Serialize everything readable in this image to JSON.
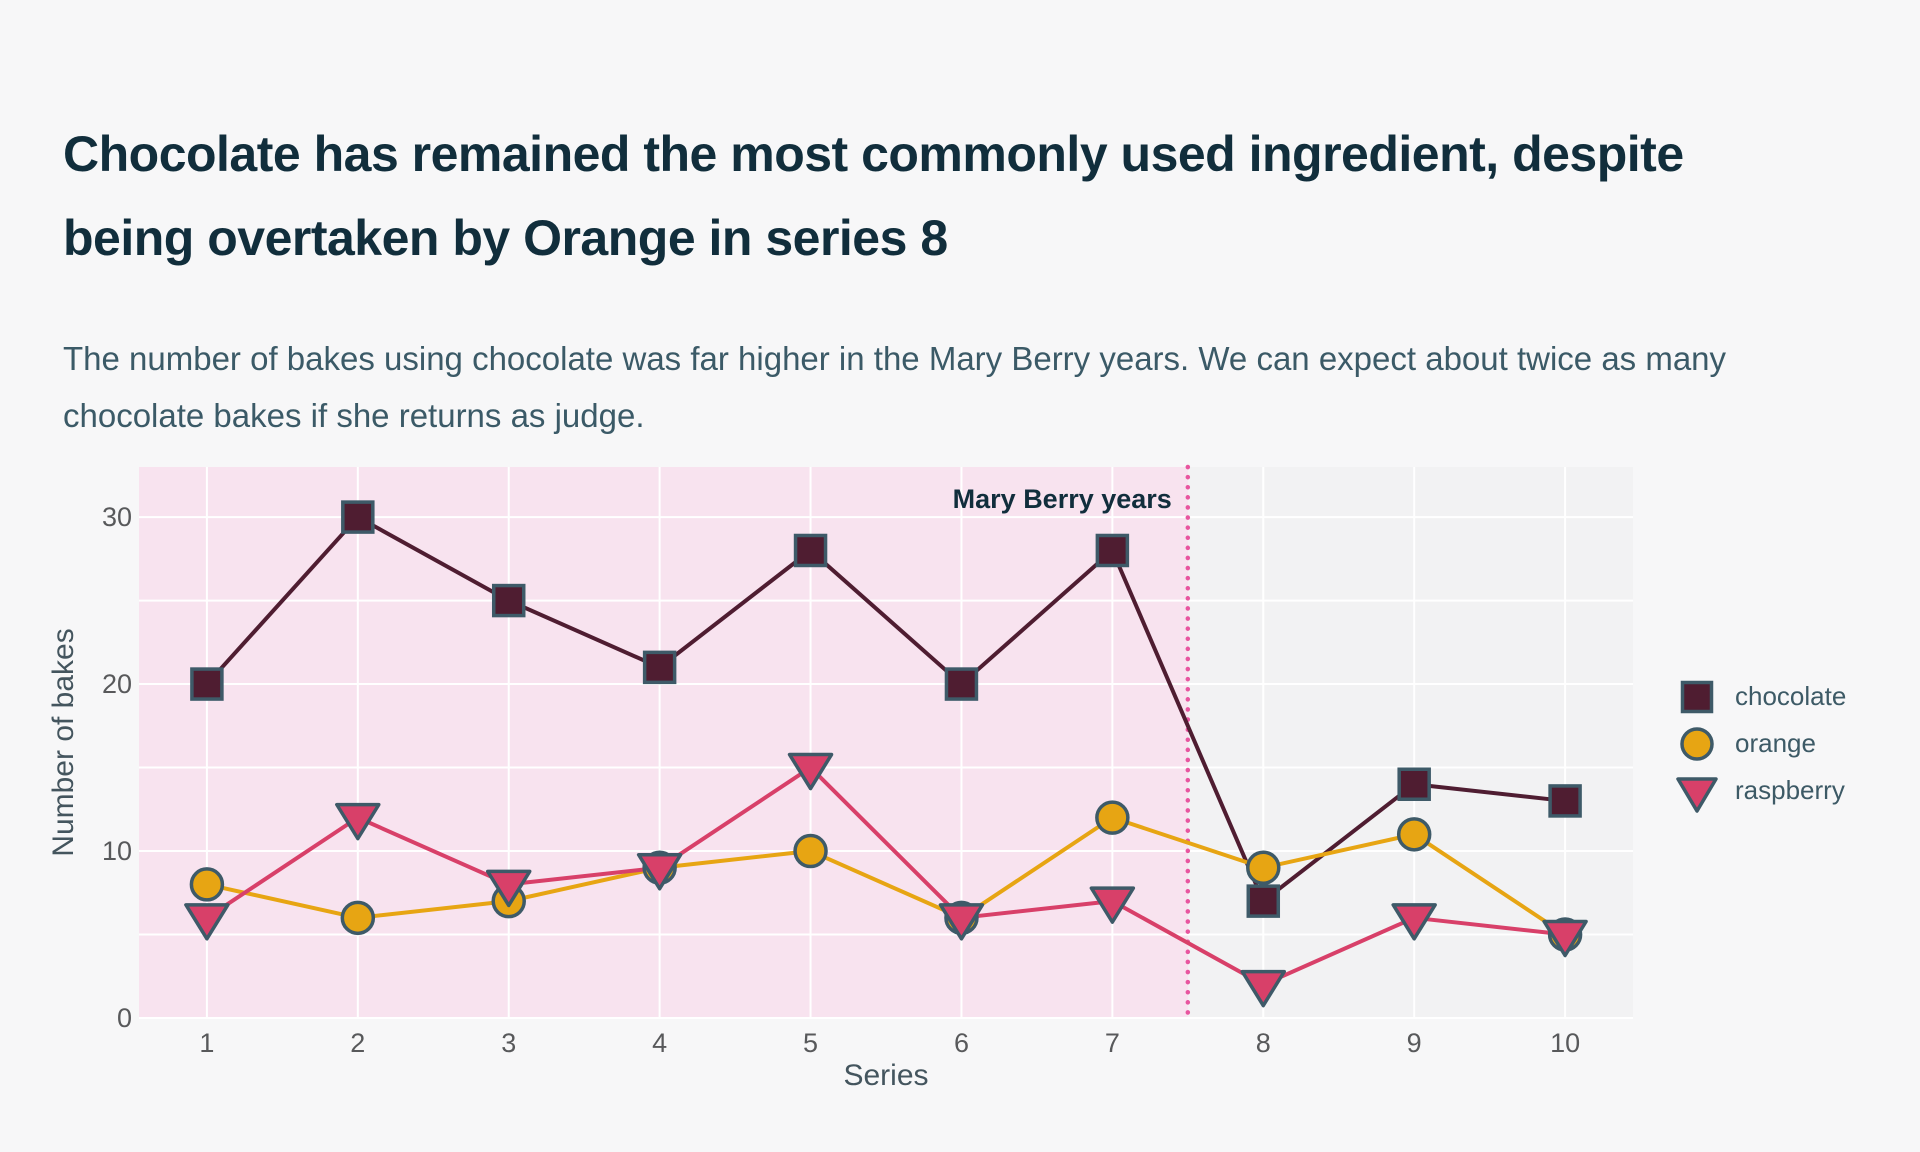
{
  "page": {
    "title": "Chocolate has remained the most commonly used ingredient, despite being overtaken by Orange in series 8",
    "subtitle": "The number of bakes using chocolate was far higher in the Mary Berry years. We can expect about twice as many chocolate bakes if she returns as judge."
  },
  "colors": {
    "page_background": "#f7f7f8",
    "plot_background": "#f2f2f3",
    "band_fill": "#f8e3ef",
    "gridline": "#ffffff",
    "divider_dotted": "#e8559f",
    "title_text": "#112e3c",
    "subtitle_text": "#3b5a67",
    "tick_text": "#58595b",
    "axis_title_text": "#44555e",
    "legend_text": "#3d5a66",
    "marker_outline": "#3e5a68"
  },
  "chart_data": {
    "type": "line",
    "x": [
      1,
      2,
      3,
      4,
      5,
      6,
      7,
      8,
      9,
      10
    ],
    "xticks": [
      "1",
      "2",
      "3",
      "4",
      "5",
      "6",
      "7",
      "8",
      "9",
      "10"
    ],
    "yticks": [
      "0",
      "10",
      "20",
      "30"
    ],
    "ytick_values": [
      0,
      10,
      20,
      30
    ],
    "y_gridlines": [
      0,
      5,
      10,
      15,
      20,
      25,
      30
    ],
    "xlabel": "Series",
    "ylabel": "Number of bakes",
    "xlim": [
      0.55,
      10.45
    ],
    "ylim": [
      0,
      33
    ],
    "grid": true,
    "legend_position": "right",
    "series": [
      {
        "name": "chocolate",
        "marker": "square",
        "color": "#4f1d31",
        "values": [
          20,
          30,
          25,
          21,
          28,
          20,
          28,
          7,
          14,
          13
        ]
      },
      {
        "name": "orange",
        "marker": "circle",
        "color": "#e7a513",
        "values": [
          8,
          6,
          7,
          9,
          10,
          6,
          12,
          9,
          11,
          5
        ]
      },
      {
        "name": "raspberry",
        "marker": "triangle-down",
        "color": "#d84069",
        "values": [
          6,
          12,
          8,
          9,
          15,
          6,
          7,
          2,
          6,
          5
        ]
      }
    ],
    "band": {
      "label": "Mary Berry years",
      "x_end": 7.5
    }
  }
}
